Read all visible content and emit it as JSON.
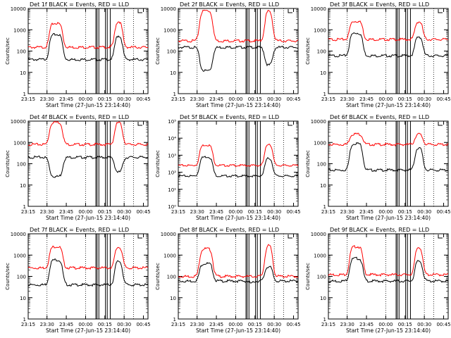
{
  "figure": {
    "xlabel": "Start Time (27-Jun-15 23:14:40)",
    "ylabel": "Counts/sec",
    "x_ticks": [
      "23:15",
      "23:30",
      "23:45",
      "00:00",
      "00:15",
      "00:30",
      "00:45"
    ],
    "colors": {
      "events": "#000000",
      "lld": "#ff0000",
      "axes": "#000000",
      "background": "#ffffff"
    }
  },
  "chart_data": [
    {
      "type": "line",
      "title": "Det 1f BLACK = Events, RED = LLD",
      "ylim": [
        1,
        10000
      ],
      "y_ticks": [
        "1",
        "10",
        "100",
        "1000",
        "10000"
      ],
      "series": [
        {
          "name": "Events",
          "color": "#000000",
          "base": 40,
          "peak1": 600,
          "peak2": 550,
          "dip": null,
          "dipv": null
        },
        {
          "name": "LLD",
          "color": "#ff0000",
          "base": 150,
          "peak1": 2000,
          "peak2": 2600,
          "dip": null,
          "dipv": null
        }
      ]
    },
    {
      "type": "line",
      "title": "Det 2f BLACK = Events, RED = LLD",
      "ylim": [
        1,
        10000
      ],
      "y_ticks": [
        "1",
        "10",
        "100",
        "1000",
        "10000"
      ],
      "series": [
        {
          "name": "Events",
          "color": "#000000",
          "base": 150,
          "peak1": 250,
          "peak2": 180,
          "dip": "both",
          "dipv": 12
        },
        {
          "name": "LLD",
          "color": "#ff0000",
          "base": 300,
          "peak1": 8000,
          "peak2": 8000,
          "dip": null,
          "dipv": null
        }
      ]
    },
    {
      "type": "line",
      "title": "Det 3f BLACK = Events, RED = LLD",
      "ylim": [
        1,
        10000
      ],
      "y_ticks": [
        "1",
        "10",
        "100",
        "1000",
        "10000"
      ],
      "series": [
        {
          "name": "Events",
          "color": "#000000",
          "base": 60,
          "peak1": 700,
          "peak2": 500,
          "dip": null,
          "dipv": null
        },
        {
          "name": "LLD",
          "color": "#ff0000",
          "base": 350,
          "peak1": 2500,
          "peak2": 2500,
          "dip": null,
          "dipv": null
        }
      ]
    },
    {
      "type": "line",
      "title": "Det 4f BLACK = Events, RED = LLD",
      "ylim": [
        1,
        10000
      ],
      "y_ticks": [
        "1",
        "10",
        "100",
        "1000",
        "10000"
      ],
      "series": [
        {
          "name": "Events",
          "color": "#000000",
          "base": 200,
          "peak1": 250,
          "peak2": 220,
          "dip": "both",
          "dipv": 25
        },
        {
          "name": "LLD",
          "color": "#ff0000",
          "base": 800,
          "peak1": 9000,
          "peak2": 9000,
          "dip": null,
          "dipv": null
        }
      ]
    },
    {
      "type": "line",
      "title": "Det 5f BLACK = Events, RED = LLD",
      "ylim": [
        1,
        100000
      ],
      "y_ticks": [
        "10⁰",
        "10¹",
        "10²",
        "10³",
        "10⁴",
        "10⁵"
      ],
      "series": [
        {
          "name": "Events",
          "color": "#000000",
          "base": 60,
          "peak1": 800,
          "peak2": 700,
          "dip": null,
          "dipv": null
        },
        {
          "name": "LLD",
          "color": "#ff0000",
          "base": 250,
          "peak1": 4000,
          "peak2": 5000,
          "dip": null,
          "dipv": null
        }
      ]
    },
    {
      "type": "line",
      "title": "Det 6f BLACK = Events, RED = LLD",
      "ylim": [
        1,
        10000
      ],
      "y_ticks": [
        "1",
        "10",
        "100",
        "1000",
        "10000"
      ],
      "series": [
        {
          "name": "Events",
          "color": "#000000",
          "base": 50,
          "peak1": 900,
          "peak2": 600,
          "dip": null,
          "dipv": null
        },
        {
          "name": "LLD",
          "color": "#ff0000",
          "base": 800,
          "peak1": 2500,
          "peak2": 2500,
          "dip": null,
          "dipv": null
        }
      ]
    },
    {
      "type": "line",
      "title": "Det 7f BLACK = Events, RED = LLD",
      "ylim": [
        1,
        10000
      ],
      "y_ticks": [
        "1",
        "10",
        "100",
        "1000",
        "10000"
      ],
      "series": [
        {
          "name": "Events",
          "color": "#000000",
          "base": 40,
          "peak1": 600,
          "peak2": 550,
          "dip": null,
          "dipv": null
        },
        {
          "name": "LLD",
          "color": "#ff0000",
          "base": 250,
          "peak1": 2500,
          "peak2": 2500,
          "dip": null,
          "dipv": null
        }
      ]
    },
    {
      "type": "line",
      "title": "Det 8f BLACK = Events, RED = LLD",
      "ylim": [
        1,
        10000
      ],
      "y_ticks": [
        "1",
        "10",
        "100",
        "1000",
        "10000"
      ],
      "series": [
        {
          "name": "Events",
          "color": "#000000",
          "base": 60,
          "peak1": 400,
          "peak2": 300,
          "dip": "second",
          "dipv": 40
        },
        {
          "name": "LLD",
          "color": "#ff0000",
          "base": 100,
          "peak1": 2000,
          "peak2": 3000,
          "dip": null,
          "dipv": null
        }
      ]
    },
    {
      "type": "line",
      "title": "Det 9f BLACK = Events, RED = LLD",
      "ylim": [
        1,
        10000
      ],
      "y_ticks": [
        "1",
        "10",
        "100",
        "1000",
        "10000"
      ],
      "series": [
        {
          "name": "Events",
          "color": "#000000",
          "base": 60,
          "peak1": 700,
          "peak2": 550,
          "dip": null,
          "dipv": null
        },
        {
          "name": "LLD",
          "color": "#ff0000",
          "base": 120,
          "peak1": 2500,
          "peak2": 2500,
          "dip": null,
          "dipv": null
        }
      ]
    }
  ]
}
